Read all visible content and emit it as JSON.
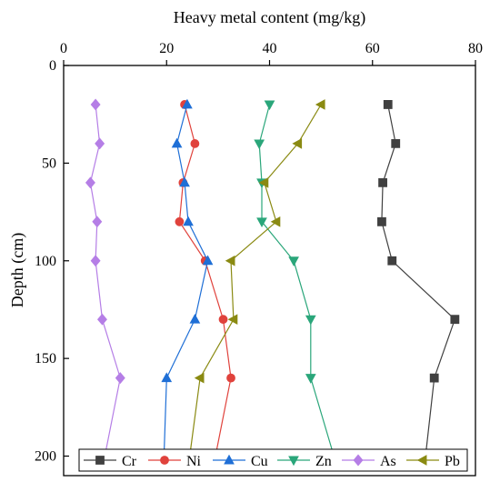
{
  "chart_data": {
    "type": "line",
    "xlabel": "Heavy metal content (mg/kg)",
    "ylabel": "Depth (cm)",
    "xlim": [
      0,
      80
    ],
    "ylim": [
      0,
      210
    ],
    "y_inverted": true,
    "x_axis_position": "top",
    "xticks": [
      0,
      20,
      40,
      60,
      80
    ],
    "yticks": [
      0,
      50,
      100,
      150,
      200
    ],
    "grid": false,
    "legend_position": "bottom",
    "depths": [
      20,
      40,
      60,
      80,
      100,
      130,
      160,
      200
    ],
    "series": [
      {
        "name": "Cr",
        "color": "#404040",
        "marker": "square",
        "x": [
          63,
          64.5,
          62,
          61.8,
          63.8,
          76,
          72,
          70.3
        ],
        "y": [
          20,
          40,
          60,
          80,
          100,
          130,
          160,
          200
        ]
      },
      {
        "name": "Ni",
        "color": "#e0423c",
        "marker": "circle",
        "x": [
          23.5,
          25.5,
          23.2,
          22.5,
          27.5,
          31,
          32.5,
          29.5
        ],
        "y": [
          20,
          40,
          60,
          80,
          100,
          130,
          160,
          200
        ]
      },
      {
        "name": "Cu",
        "color": "#1f6fd6",
        "marker": "triangle-up",
        "x": [
          24,
          22,
          23.5,
          24.2,
          28,
          25.5,
          20,
          19.5
        ],
        "y": [
          20,
          40,
          60,
          80,
          100,
          130,
          160,
          200
        ]
      },
      {
        "name": "Zn",
        "color": "#2aa67a",
        "marker": "triangle-down",
        "x": [
          40,
          38,
          38.5,
          38.5,
          44.7,
          48,
          48,
          52.5
        ],
        "y": [
          20,
          40,
          60,
          80,
          100,
          130,
          160,
          200
        ]
      },
      {
        "name": "As",
        "color": "#b57ee6",
        "marker": "diamond",
        "x": [
          6.2,
          7,
          5.2,
          6.5,
          6.2,
          7.5,
          11,
          8
        ],
        "y": [
          20,
          40,
          60,
          80,
          100,
          130,
          160,
          200
        ]
      },
      {
        "name": "Pb",
        "color": "#8a8a12",
        "marker": "triangle-left",
        "x": [
          50,
          45.5,
          39,
          41.3,
          32.5,
          33,
          26.5,
          24.5
        ],
        "y": [
          20,
          40,
          60,
          80,
          100,
          130,
          160,
          200
        ]
      }
    ]
  }
}
